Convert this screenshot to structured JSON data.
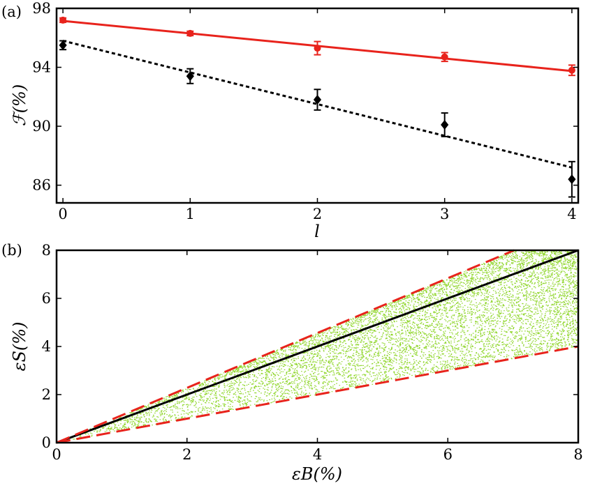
{
  "chart_data": [
    {
      "panel_label": "(a)",
      "type": "line",
      "xlabel": "l",
      "ylabel": "ℱ(%)",
      "xlim": [
        -0.05,
        4.05
      ],
      "ylim": [
        84.8,
        98.0
      ],
      "x_ticks": [
        "0",
        "1",
        "2",
        "3",
        "4"
      ],
      "y_ticks": [
        "86",
        "90",
        "94",
        "98"
      ],
      "series": [
        {
          "name": "red data",
          "color": "#e8231c",
          "marker": "circle",
          "x": [
            0,
            1,
            2,
            3,
            4
          ],
          "y": [
            97.2,
            96.3,
            95.3,
            94.7,
            93.8
          ],
          "err": [
            0.15,
            0.15,
            0.45,
            0.3,
            0.35
          ]
        },
        {
          "name": "black data",
          "color": "#000000",
          "marker": "diamond",
          "x": [
            0,
            1,
            2,
            3,
            4
          ],
          "y": [
            95.5,
            93.4,
            91.8,
            90.1,
            86.4
          ],
          "err": [
            0.3,
            0.5,
            0.7,
            0.8,
            1.2
          ]
        }
      ],
      "fits": [
        {
          "name": "red fit",
          "color": "#e8231c",
          "style": "solid",
          "x": [
            0,
            4
          ],
          "y": [
            97.15,
            93.75
          ]
        },
        {
          "name": "black fit",
          "color": "#000000",
          "style": "dotted",
          "x": [
            0,
            4
          ],
          "y": [
            95.8,
            87.2
          ]
        }
      ]
    },
    {
      "panel_label": "(b)",
      "type": "scatter",
      "xlabel": "εB(%)",
      "ylabel": "εS(%)",
      "xlim": [
        0,
        8
      ],
      "ylim": [
        0,
        8
      ],
      "x_ticks": [
        "0",
        "2",
        "4",
        "6",
        "8"
      ],
      "y_ticks": [
        "0",
        "2",
        "4",
        "6",
        "8"
      ],
      "scatter_color": "#8fd62a",
      "scatter_region": {
        "lower_slope": 0.5,
        "upper_slope": 1.14,
        "x_range": [
          0,
          8
        ],
        "approx_points": 9000
      },
      "lines": [
        {
          "name": "equality line",
          "color": "#000000",
          "style": "solid",
          "slope": 1.0
        },
        {
          "name": "upper bound",
          "color": "#e8231c",
          "style": "dashed",
          "slope": 1.14
        },
        {
          "name": "lower bound",
          "color": "#e8231c",
          "style": "dashed",
          "slope": 0.5
        }
      ]
    }
  ]
}
